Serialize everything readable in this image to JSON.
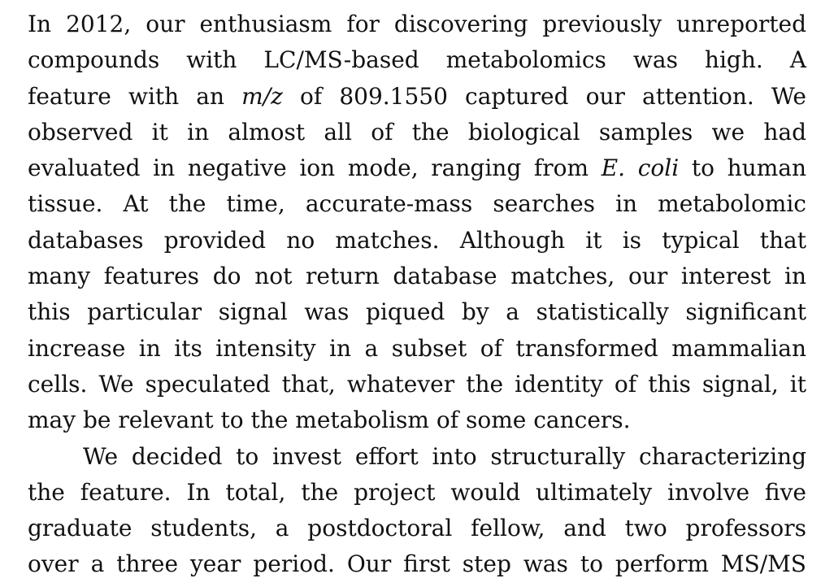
{
  "paragraphs": [
    {
      "lines": [
        [
          "In 2012, our enthusiasm for discovering previously unreported"
        ],
        [
          "compounds with LC/MS-based metabolomics was high. A"
        ],
        [
          "feature with an ",
          {
            "i": "m/z"
          },
          " of 809.1550 captured our attention. We"
        ],
        [
          "observed it in almost all of the biological samples we had"
        ],
        [
          "evaluated in negative ion mode, ranging from ",
          {
            "i": "E. coli"
          },
          " to human"
        ],
        [
          "tissue. At the time, accurate-mass searches in metabolomic"
        ],
        [
          "databases provided no matches. Although it is typical that"
        ],
        [
          "many features do not return database matches, our interest in"
        ],
        [
          "this particular signal was piqued by a statistically significant"
        ],
        [
          "increase in its intensity in a subset of transformed mammalian"
        ],
        [
          "cells. We speculated that, whatever the identity of this signal, it"
        ],
        [
          "may be relevant to the metabolism of some cancers."
        ]
      ]
    },
    {
      "lines": [
        [
          "We decided to invest effort into structurally characterizing"
        ],
        [
          "the feature. In total, the project would ultimately involve five"
        ],
        [
          "graduate students, a postdoctoral fellow, and two professors"
        ],
        [
          "over a three year period. Our first step was to perform MS/MS"
        ]
      ]
    }
  ]
}
